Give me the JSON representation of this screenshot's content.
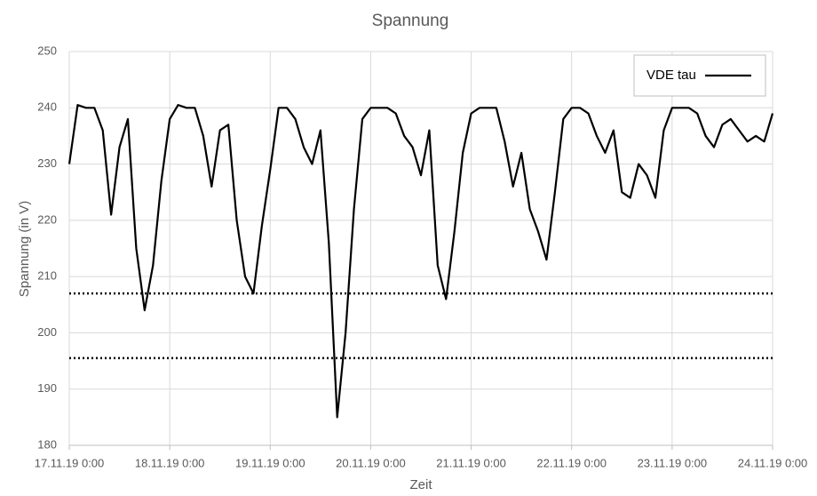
{
  "chart_data": {
    "type": "line",
    "title": "Spannung",
    "x_label": "Zeit",
    "y_label": "Spannung (in V)",
    "x": [
      "17.11.19 0:00",
      "17.11.19 2:00",
      "17.11.19 4:00",
      "17.11.19 6:00",
      "17.11.19 8:00",
      "17.11.19 10:00",
      "17.11.19 12:00",
      "17.11.19 14:00",
      "17.11.19 16:00",
      "17.11.19 18:00",
      "17.11.19 20:00",
      "17.11.19 22:00",
      "18.11.19 0:00",
      "18.11.19 2:00",
      "18.11.19 4:00",
      "18.11.19 6:00",
      "18.11.19 8:00",
      "18.11.19 10:00",
      "18.11.19 12:00",
      "18.11.19 14:00",
      "18.11.19 16:00",
      "18.11.19 18:00",
      "18.11.19 20:00",
      "18.11.19 22:00",
      "19.11.19 0:00",
      "19.11.19 2:00",
      "19.11.19 4:00",
      "19.11.19 6:00",
      "19.11.19 8:00",
      "19.11.19 10:00",
      "19.11.19 12:00",
      "19.11.19 14:00",
      "19.11.19 16:00",
      "19.11.19 18:00",
      "19.11.19 20:00",
      "19.11.19 22:00",
      "20.11.19 0:00",
      "20.11.19 2:00",
      "20.11.19 4:00",
      "20.11.19 6:00",
      "20.11.19 8:00",
      "20.11.19 10:00",
      "20.11.19 12:00",
      "20.11.19 14:00",
      "20.11.19 16:00",
      "20.11.19 18:00",
      "20.11.19 20:00",
      "20.11.19 22:00",
      "21.11.19 0:00",
      "21.11.19 2:00",
      "21.11.19 4:00",
      "21.11.19 6:00",
      "21.11.19 8:00",
      "21.11.19 10:00",
      "21.11.19 12:00",
      "21.11.19 14:00",
      "21.11.19 16:00",
      "21.11.19 18:00",
      "21.11.19 20:00",
      "21.11.19 22:00",
      "22.11.19 0:00",
      "22.11.19 2:00",
      "22.11.19 4:00",
      "22.11.19 6:00",
      "22.11.19 8:00",
      "22.11.19 10:00",
      "22.11.19 12:00",
      "22.11.19 14:00",
      "22.11.19 16:00",
      "22.11.19 18:00",
      "22.11.19 20:00",
      "22.11.19 22:00",
      "23.11.19 0:00",
      "23.11.19 2:00",
      "23.11.19 4:00",
      "23.11.19 6:00",
      "23.11.19 8:00",
      "23.11.19 10:00",
      "23.11.19 12:00",
      "23.11.19 14:00",
      "23.11.19 16:00",
      "23.11.19 18:00",
      "23.11.19 20:00",
      "23.11.19 22:00",
      "24.11.19 0:00"
    ],
    "series": [
      {
        "name": "VDE tau",
        "color": "#000000",
        "values": [
          230,
          240.5,
          240,
          240,
          236,
          221,
          233,
          238,
          215,
          204,
          212,
          227,
          238,
          240.5,
          240,
          240,
          235,
          226,
          236,
          237,
          220,
          210,
          207,
          219,
          229,
          240,
          240,
          238,
          233,
          230,
          236,
          216,
          185,
          200,
          222,
          238,
          240,
          240,
          240,
          239,
          235,
          233,
          228,
          236,
          212,
          206,
          218,
          232,
          239,
          240,
          240,
          240,
          234,
          226,
          232,
          222,
          218,
          213,
          225,
          238,
          240,
          240,
          239,
          235,
          232,
          236,
          225,
          224,
          230,
          228,
          224,
          236,
          240,
          240,
          240,
          239,
          235,
          233,
          237,
          238,
          236,
          234,
          235,
          234,
          239
        ]
      }
    ],
    "reference_lines": [
      207,
      195.5
    ],
    "xlim": [
      "17.11.19 0:00",
      "24.11.19 0:00"
    ],
    "xticks": [
      "17.11.19 0:00",
      "18.11.19 0:00",
      "19.11.19 0:00",
      "20.11.19 0:00",
      "21.11.19 0:00",
      "22.11.19 0:00",
      "23.11.19 0:00",
      "24.11.19 0:00"
    ],
    "ylim": [
      180,
      250
    ],
    "yticks": [
      180,
      190,
      200,
      210,
      220,
      230,
      240,
      250
    ],
    "grid": true,
    "legend": "upper right"
  }
}
